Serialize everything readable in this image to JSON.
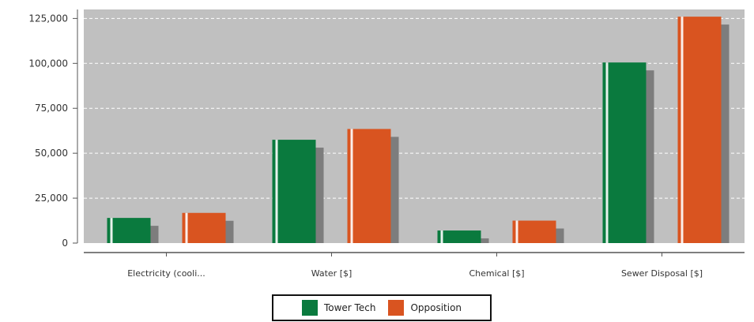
{
  "chart_data": {
    "type": "bar",
    "categories": [
      "Electricity (cooli...",
      "Water [$]",
      "Chemical [$]",
      "Sewer Disposal [$]"
    ],
    "series": [
      {
        "name": "Tower Tech",
        "color": "#0a7a3e",
        "values": [
          14000,
          57500,
          7000,
          100500
        ]
      },
      {
        "name": "Opposition",
        "color": "#d95420",
        "values": [
          16800,
          63500,
          12500,
          126000
        ]
      }
    ],
    "ylim": [
      0,
      130000
    ],
    "yticks": [
      0,
      25000,
      50000,
      75000,
      100000,
      125000
    ],
    "ytick_labels": [
      "0",
      "25,000",
      "50,000",
      "75,000",
      "100,000",
      "125,000"
    ],
    "title": "",
    "xlabel": "",
    "ylabel": "",
    "grid": true,
    "legend_position": "bottom",
    "plot_background": "#c0c0c0"
  }
}
